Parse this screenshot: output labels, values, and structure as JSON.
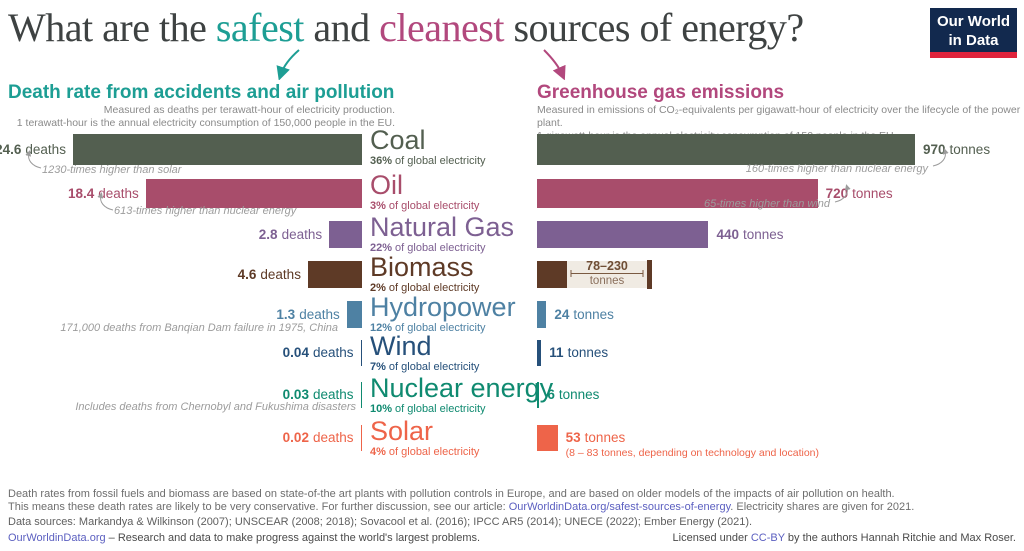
{
  "title": {
    "pre": "What are the ",
    "safest": "safest",
    "mid": " and ",
    "cleanest": "cleanest",
    "post": " sources of energy?"
  },
  "logo": {
    "line1": "Our World",
    "line2": "in Data"
  },
  "colors": {
    "teal_accent": "#1d9e94",
    "magenta_accent": "#b2487d",
    "title_text": "#3e4242",
    "link": "#5b5fc0",
    "biomass_range_bg": "#f0ebe3",
    "biomass_range_line": "#7a5a41"
  },
  "left_chart": {
    "title": "Death rate from accidents and air pollution",
    "subtitle1": "Measured as deaths per terawatt-hour of electricity production.",
    "subtitle2": "1 terawatt-hour is the annual electricity consumption of 150,000 people in the EU."
  },
  "right_chart": {
    "title": "Greenhouse gas emissions",
    "subtitle1": "Measured in emissions of CO₂-equivalents per gigawatt-hour of electricity over the lifecycle of the power plant.",
    "subtitle2": "1 gigawatt-hour is the annual electricity consumption of 150 people in the EU."
  },
  "chart_data": {
    "type": "bar",
    "orientation": "horizontal",
    "categories": [
      "Coal",
      "Oil",
      "Natural Gas",
      "Biomass",
      "Hydropower",
      "Wind",
      "Nuclear energy",
      "Solar"
    ],
    "series": [
      {
        "name": "Death rate from accidents and air pollution (deaths per terawatt-hour)",
        "values": [
          24.6,
          18.4,
          2.8,
          4.6,
          1.3,
          0.04,
          0.03,
          0.02
        ]
      },
      {
        "name": "Greenhouse gas emissions (tonnes of CO₂-equivalents per gigawatt-hour)",
        "values": [
          970,
          720,
          440,
          78,
          24,
          11,
          6,
          53
        ]
      }
    ],
    "electricity_share_pct": [
      36,
      3,
      22,
      2,
      12,
      7,
      10,
      4
    ],
    "biomass_emissions_range": [
      78,
      230
    ],
    "solar_emissions_range": [
      8,
      83
    ],
    "legend_position": "none",
    "grid": false
  },
  "rows": [
    {
      "id": "coal",
      "label": "Coal",
      "share": "36%",
      "share_text": "of global electricity",
      "deaths": "24.6",
      "deaths_unit": "deaths",
      "emissions": "970",
      "emissions_unit": "tonnes",
      "color": "#535f50",
      "deaths_annotation": "1230-times higher than solar",
      "emissions_annotation": "160-times higher than nuclear energy"
    },
    {
      "id": "oil",
      "label": "Oil",
      "share": "3%",
      "share_text": "of global electricity",
      "deaths": "18.4",
      "deaths_unit": "deaths",
      "emissions": "720",
      "emissions_unit": "tonnes",
      "color": "#a84d6b",
      "deaths_annotation": "613-times higher than nuclear energy",
      "emissions_annotation": "65-times higher than wind"
    },
    {
      "id": "natural-gas",
      "label": "Natural Gas",
      "share": "22%",
      "share_text": "of global electricity",
      "deaths": "2.8",
      "deaths_unit": "deaths",
      "emissions": "440",
      "emissions_unit": "tonnes",
      "color": "#7d6092"
    },
    {
      "id": "biomass",
      "label": "Biomass",
      "share": "2%",
      "share_text": "of global electricity",
      "deaths": "4.6",
      "deaths_unit": "deaths",
      "emissions_range": "78–230",
      "emissions_unit": "tonnes",
      "color": "#5e3a26"
    },
    {
      "id": "hydropower",
      "label": "Hydropower",
      "share": "12%",
      "share_text": "of global electricity",
      "deaths": "1.3",
      "deaths_unit": "deaths",
      "emissions": "24",
      "emissions_unit": "tonnes",
      "color": "#4e81a3",
      "deaths_note": "171,000 deaths from Banqian Dam failure in 1975, China"
    },
    {
      "id": "wind",
      "label": "Wind",
      "share": "7%",
      "share_text": "of global electricity",
      "deaths": "0.04",
      "deaths_unit": "deaths",
      "emissions": "11",
      "emissions_unit": "tonnes",
      "color": "#26507a"
    },
    {
      "id": "nuclear",
      "label": "Nuclear energy",
      "share": "10%",
      "share_text": "of global electricity",
      "deaths": "0.03",
      "deaths_unit": "deaths",
      "emissions": "6",
      "emissions_unit": "tonnes",
      "color": "#0f8a70",
      "deaths_note": "Includes deaths from Chernobyl and Fukushima disasters"
    },
    {
      "id": "solar",
      "label": "Solar",
      "share": "4%",
      "share_text": "of global electricity",
      "deaths": "0.02",
      "deaths_unit": "deaths",
      "emissions": "53",
      "emissions_unit": "tonnes",
      "color": "#ee6449",
      "emissions_note": "(8 – 83 tonnes, depending on technology and location)"
    }
  ],
  "footer": {
    "line1": "Death rates from fossil fuels and biomass are based on state-of-the art plants with pollution controls in Europe, and are based on older models of the impacts of air pollution on health.",
    "line2_pre": "This means these death rates are likely to be very conservative. For further discussion, see our article: ",
    "line2_link": "OurWorldinData.org/safest-sources-of-energy",
    "line2_post": ". Electricity shares are given for 2021.",
    "sources": "Data sources: Markandya & Wilkinson (2007); UNSCEAR (2008; 2018); Sovacool et al. (2016); IPCC AR5 (2014); UNECE (2022); Ember Energy (2021).",
    "site_link": "OurWorldinData.org",
    "site_text": " – Research and data to make progress against the world's largest problems.",
    "license_pre": "Licensed under ",
    "license_link": "CC-BY",
    "license_post": " by the authors Hannah Ritchie and Max Roser."
  }
}
